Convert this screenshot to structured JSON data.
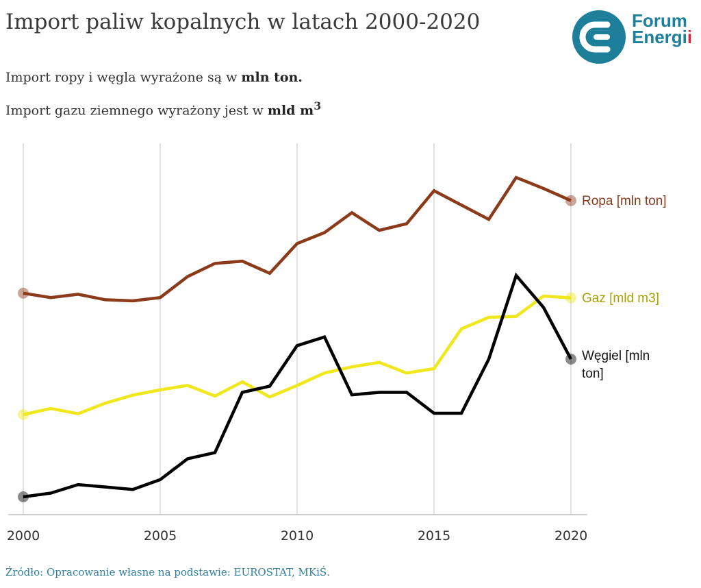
{
  "title": "Import paliw kopalnych w latach 2000-2020",
  "subtitle_line1_prefix": "Import ropy i węgla wyrażone są w ",
  "subtitle_line1_bold": "mln ton.",
  "subtitle_line2_prefix": "Import gazu ziemnego wyrażony jest w ",
  "subtitle_line2_bold": "mld m",
  "subtitle_line2_sup": "3",
  "logo": {
    "line1": "Forum",
    "line2_main": "Energi",
    "line2_dots": "i",
    "icon": "forum-energii-logo"
  },
  "source": "Źródło: Opracowanie własne na podstawie: EUROSTAT, MKiŚ.",
  "colors": {
    "ropa": "#8b3a1a",
    "gaz": "#f0e81c",
    "wegiel": "#000000",
    "gaz_label": "#a8a000",
    "grid": "#d6d6d6",
    "logo": "#1d7f99"
  },
  "chart_data": {
    "type": "line",
    "x": [
      2000,
      2001,
      2002,
      2003,
      2004,
      2005,
      2006,
      2007,
      2008,
      2009,
      2010,
      2011,
      2012,
      2013,
      2014,
      2015,
      2016,
      2017,
      2018,
      2019,
      2020
    ],
    "xticks": [
      "2000",
      "2005",
      "2010",
      "2015",
      "2020"
    ],
    "grid": "vertical",
    "series": [
      {
        "name": "Ropa [mln ton]",
        "key": "ropa",
        "values": [
          18.2,
          17.8,
          18.1,
          17.6,
          17.5,
          17.8,
          19.7,
          20.9,
          21.1,
          20.0,
          22.7,
          23.7,
          25.5,
          23.9,
          24.5,
          27.5,
          26.2,
          24.9,
          28.7,
          27.7,
          26.6
        ]
      },
      {
        "name": "Gaz [mld m3]",
        "key": "gaz",
        "values": [
          5.6,
          6.3,
          5.7,
          6.9,
          7.8,
          8.4,
          8.9,
          7.7,
          9.3,
          7.6,
          8.9,
          10.3,
          11.0,
          11.5,
          10.3,
          10.8,
          15.3,
          16.6,
          16.7,
          19.0,
          18.8
        ]
      },
      {
        "name": "Węgiel [mln ton]",
        "key": "wegiel",
        "label_lines": [
          "Węgiel [mln",
          "ton]"
        ],
        "values": [
          1.8,
          2.1,
          2.8,
          2.6,
          2.4,
          3.2,
          4.9,
          5.4,
          10.3,
          10.8,
          14.1,
          14.8,
          10.1,
          10.3,
          10.3,
          8.6,
          8.6,
          13.0,
          19.8,
          17.2,
          13.0
        ]
      }
    ]
  }
}
